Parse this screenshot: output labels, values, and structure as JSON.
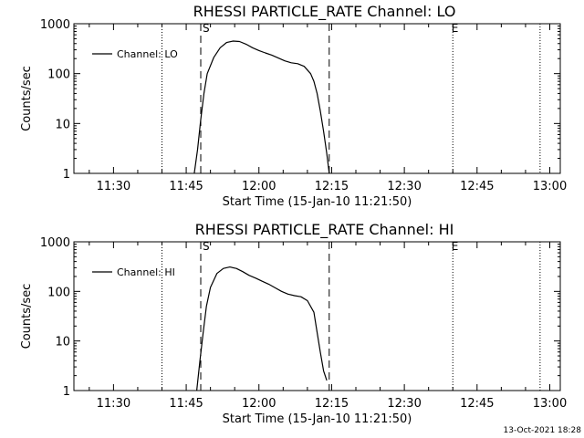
{
  "footer": {
    "timestamp": "13-Oct-2021 18:28"
  },
  "chart_data": [
    {
      "type": "line",
      "title": "RHESSI PARTICLE_RATE Channel: LO",
      "xlabel": "Start Time (15-Jan-10 11:21:50)",
      "ylabel": "Counts/sec",
      "y_scale": "log",
      "ylim": [
        1,
        1000
      ],
      "xlim": [
        "11:21:50",
        "13:02:10"
      ],
      "x_ticks": [
        "11:30",
        "11:45",
        "12:00",
        "12:15",
        "12:30",
        "12:45",
        "13:00"
      ],
      "y_ticks": [
        "1",
        "10",
        "100",
        "1000"
      ],
      "legend": {
        "entries": [
          "Channel: LO"
        ],
        "position": "top-left"
      },
      "flag_labels": [
        {
          "label": "S",
          "time": "11:48:00"
        },
        {
          "label": "E",
          "time": "12:39:20"
        }
      ],
      "dashed_lines": [
        "11:48:00",
        "12:14:30"
      ],
      "dotted_lines": [
        "11:40:00",
        "12:40:00",
        "12:58:00"
      ],
      "series": [
        {
          "name": "Channel: LO",
          "x": [
            "11:46:40",
            "11:47:20",
            "11:48:00",
            "11:48:40",
            "11:49:20",
            "11:50:40",
            "11:52:00",
            "11:53:20",
            "11:54:40",
            "11:56:00",
            "11:57:20",
            "11:58:40",
            "12:00:00",
            "12:01:20",
            "12:02:40",
            "12:04:00",
            "12:05:20",
            "12:06:40",
            "12:08:00",
            "12:09:20",
            "12:10:40",
            "12:11:20",
            "12:12:00",
            "12:12:40",
            "12:13:20",
            "12:14:00",
            "12:14:30"
          ],
          "y": [
            1,
            3,
            12,
            40,
            100,
            210,
            330,
            420,
            450,
            440,
            390,
            330,
            290,
            260,
            235,
            205,
            180,
            165,
            158,
            140,
            100,
            70,
            40,
            18,
            7,
            2.5,
            1
          ]
        }
      ]
    },
    {
      "type": "line",
      "title": "RHESSI PARTICLE_RATE Channel: HI",
      "xlabel": "Start Time (15-Jan-10 11:21:50)",
      "ylabel": "Counts/sec",
      "y_scale": "log",
      "ylim": [
        1,
        1000
      ],
      "xlim": [
        "11:21:50",
        "13:02:10"
      ],
      "x_ticks": [
        "11:30",
        "11:45",
        "12:00",
        "12:15",
        "12:30",
        "12:45",
        "13:00"
      ],
      "y_ticks": [
        "1",
        "10",
        "100",
        "1000"
      ],
      "legend": {
        "entries": [
          "Channel: HI"
        ],
        "position": "top-left"
      },
      "flag_labels": [
        {
          "label": "S",
          "time": "11:48:00"
        },
        {
          "label": "E",
          "time": "12:39:20"
        }
      ],
      "dashed_lines": [
        "11:48:00",
        "12:14:30"
      ],
      "dotted_lines": [
        "11:40:00",
        "12:40:00",
        "12:58:00"
      ],
      "series": [
        {
          "name": "Channel: HI",
          "x": [
            "11:47:10",
            "11:47:50",
            "11:48:30",
            "11:49:10",
            "11:50:00",
            "11:51:20",
            "11:52:40",
            "11:54:00",
            "11:55:20",
            "11:56:40",
            "11:58:00",
            "11:59:20",
            "12:00:40",
            "12:02:00",
            "12:03:20",
            "12:04:40",
            "12:06:00",
            "12:07:20",
            "12:08:40",
            "12:10:00",
            "12:11:20",
            "12:12:00",
            "12:12:40",
            "12:13:20",
            "12:14:00"
          ],
          "y": [
            1,
            4,
            15,
            50,
            120,
            230,
            290,
            310,
            290,
            250,
            210,
            185,
            160,
            140,
            118,
            100,
            88,
            82,
            78,
            65,
            38,
            15,
            6,
            2.5,
            1.6
          ]
        }
      ]
    }
  ]
}
